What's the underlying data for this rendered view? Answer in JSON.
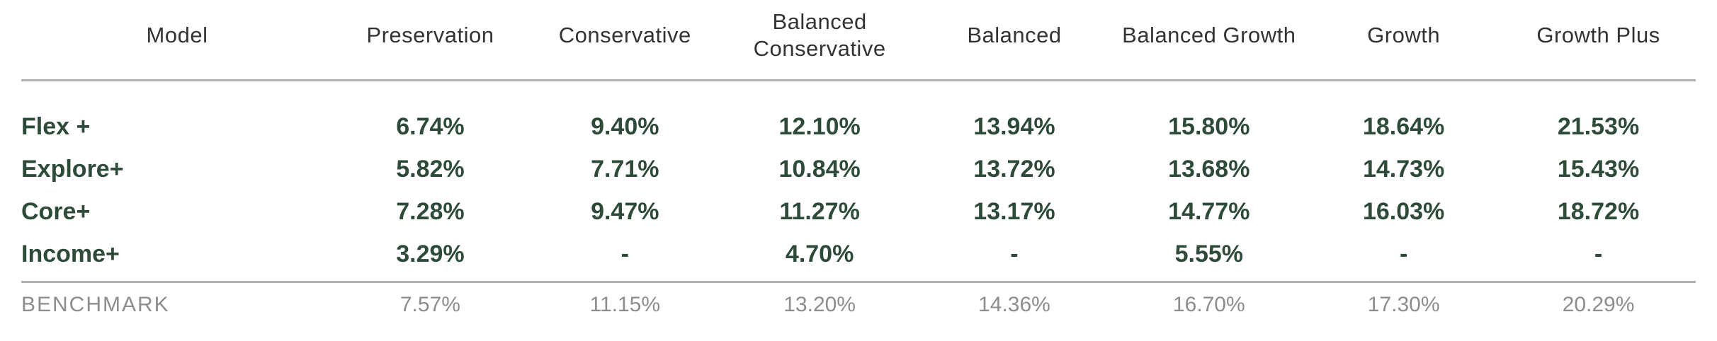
{
  "chart_data": {
    "type": "table",
    "columns": [
      "Model",
      "Preservation",
      "Conservative",
      "Balanced Conservative",
      "Balanced",
      "Balanced Growth",
      "Growth",
      "Growth Plus"
    ],
    "rows": [
      {
        "label": "Flex +",
        "values": [
          "6.74%",
          "9.40%",
          "12.10%",
          "13.94%",
          "15.80%",
          "18.64%",
          "21.53%"
        ]
      },
      {
        "label": "Explore+",
        "values": [
          "5.82%",
          "7.71%",
          "10.84%",
          "13.72%",
          "13.68%",
          "14.73%",
          "15.43%"
        ]
      },
      {
        "label": "Core+",
        "values": [
          "7.28%",
          "9.47%",
          "11.27%",
          "13.17%",
          "14.77%",
          "16.03%",
          "18.72%"
        ]
      },
      {
        "label": "Income+",
        "values": [
          "3.29%",
          "-",
          "4.70%",
          "-",
          "5.55%",
          "-",
          "-"
        ]
      }
    ],
    "benchmark": {
      "label": "BENCHMARK",
      "values": [
        "7.57%",
        "11.15%",
        "13.20%",
        "14.36%",
        "16.70%",
        "17.30%",
        "20.29%"
      ]
    }
  },
  "colors": {
    "row_text": "#2e4b3a",
    "benchmark_text": "#8d8d8d",
    "header_text": "#333333",
    "divider": "#b3b3b3"
  }
}
